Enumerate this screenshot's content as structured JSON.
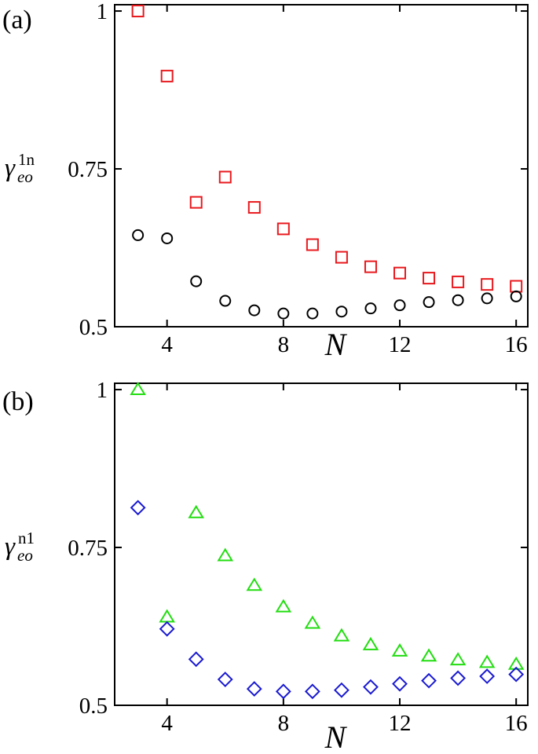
{
  "chart_data": [
    {
      "type": "scatter",
      "panel_label": "(a)",
      "xlabel": "N",
      "ylabel": {
        "symbol": "γ",
        "subscript": "eo",
        "superscript": "1n"
      },
      "xlim": [
        2.2,
        16.4
      ],
      "ylim": [
        0.5,
        1.01
      ],
      "xticks": [
        4,
        8,
        12,
        16
      ],
      "xtick_labels": [
        "4",
        "8",
        "12",
        "16"
      ],
      "yticks": [
        0.5,
        0.75,
        1
      ],
      "ytick_labels": [
        "0.5",
        "0.75",
        "1"
      ],
      "grid": false,
      "series": [
        {
          "marker": "square",
          "color": "#e8191e",
          "x": [
            3,
            4,
            5,
            6,
            7,
            8,
            9,
            10,
            11,
            12,
            13,
            14,
            15,
            16
          ],
          "y": [
            1.0,
            0.897,
            0.697,
            0.737,
            0.689,
            0.655,
            0.63,
            0.61,
            0.595,
            0.585,
            0.577,
            0.571,
            0.567,
            0.564
          ]
        },
        {
          "marker": "circle",
          "color": "#000000",
          "x": [
            3,
            4,
            5,
            6,
            7,
            8,
            9,
            10,
            11,
            12,
            13,
            14,
            15,
            16
          ],
          "y": [
            0.645,
            0.64,
            0.572,
            0.541,
            0.526,
            0.521,
            0.521,
            0.524,
            0.529,
            0.534,
            0.539,
            0.542,
            0.545,
            0.548
          ]
        }
      ]
    },
    {
      "type": "scatter",
      "panel_label": "(b)",
      "xlabel": "N",
      "ylabel": {
        "symbol": "γ",
        "subscript": "eo",
        "superscript": "n1"
      },
      "xlim": [
        2.2,
        16.4
      ],
      "ylim": [
        0.5,
        1.01
      ],
      "xticks": [
        4,
        8,
        12,
        16
      ],
      "xtick_labels": [
        "4",
        "8",
        "12",
        "16"
      ],
      "yticks": [
        0.5,
        0.75,
        1
      ],
      "ytick_labels": [
        "0.5",
        "0.75",
        "1"
      ],
      "grid": false,
      "series": [
        {
          "marker": "triangle",
          "color": "#22dd10",
          "x": [
            3,
            4,
            5,
            6,
            7,
            8,
            9,
            10,
            11,
            12,
            13,
            14,
            15,
            16
          ],
          "y": [
            1.0,
            0.64,
            0.805,
            0.737,
            0.69,
            0.656,
            0.63,
            0.61,
            0.596,
            0.586,
            0.578,
            0.572,
            0.568,
            0.565
          ]
        },
        {
          "marker": "diamond",
          "color": "#1a1ad2",
          "x": [
            3,
            4,
            5,
            6,
            7,
            8,
            9,
            10,
            11,
            12,
            13,
            14,
            15,
            16
          ],
          "y": [
            0.813,
            0.621,
            0.573,
            0.541,
            0.526,
            0.522,
            0.522,
            0.524,
            0.529,
            0.534,
            0.539,
            0.543,
            0.546,
            0.549
          ]
        }
      ]
    }
  ]
}
